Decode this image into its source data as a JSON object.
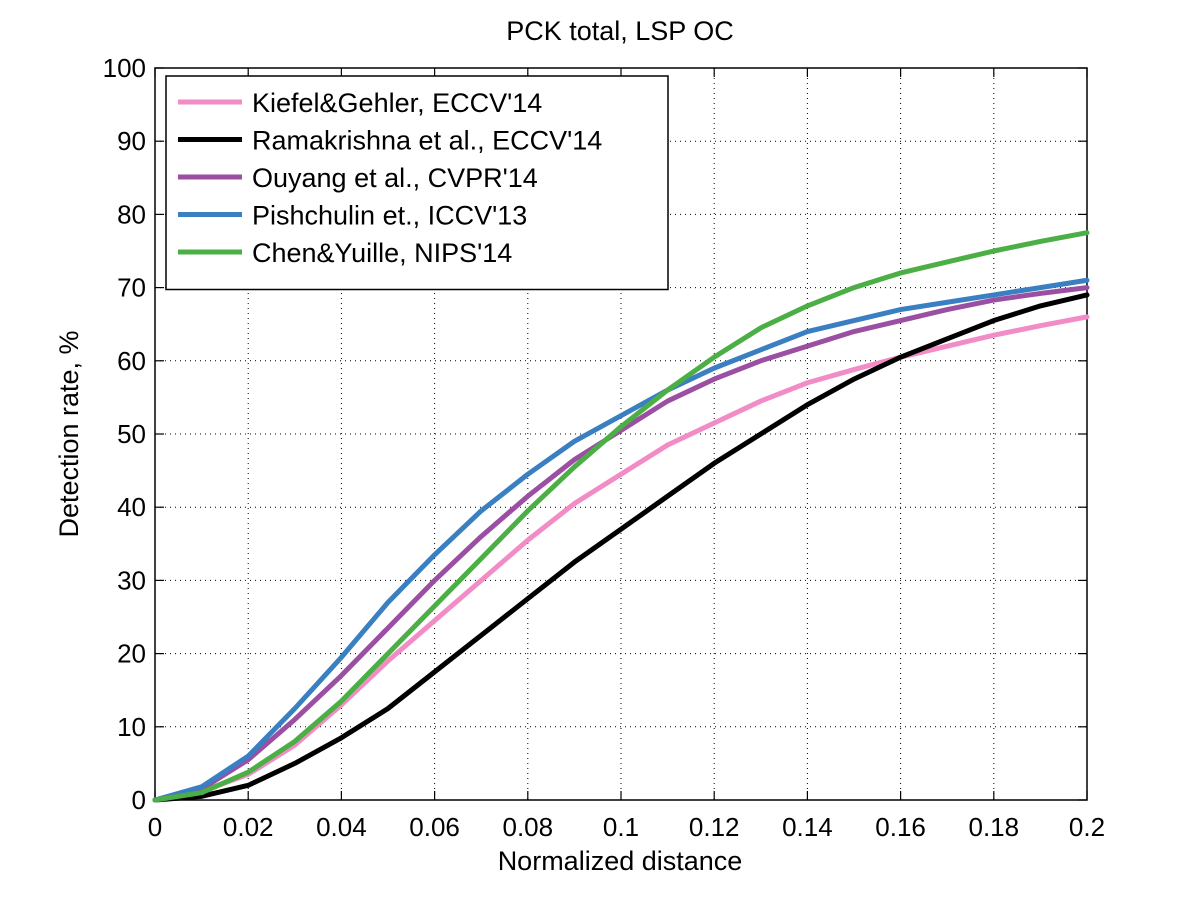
{
  "chart_data": {
    "type": "line",
    "title": "PCK total, LSP OC",
    "xlabel": "Normalized distance",
    "ylabel": "Detection rate, %",
    "xlim": [
      0,
      0.2
    ],
    "ylim": [
      0,
      100
    ],
    "xticks": [
      0,
      0.02,
      0.04,
      0.06,
      0.08,
      0.1,
      0.12,
      0.14,
      0.16,
      0.18,
      0.2
    ],
    "xtick_labels": [
      "0",
      "0.02",
      "0.04",
      "0.06",
      "0.08",
      "0.1",
      "0.12",
      "0.14",
      "0.16",
      "0.18",
      "0.2"
    ],
    "yticks": [
      0,
      10,
      20,
      30,
      40,
      50,
      60,
      70,
      80,
      90,
      100
    ],
    "ytick_labels": [
      "0",
      "10",
      "20",
      "30",
      "40",
      "50",
      "60",
      "70",
      "80",
      "90",
      "100"
    ],
    "grid": true,
    "legend_position": "top-left",
    "x": [
      0,
      0.01,
      0.02,
      0.03,
      0.04,
      0.05,
      0.06,
      0.07,
      0.08,
      0.09,
      0.1,
      0.11,
      0.12,
      0.13,
      0.14,
      0.15,
      0.16,
      0.17,
      0.18,
      0.19,
      0.2
    ],
    "series": [
      {
        "name": "Kiefel&Gehler, ECCV'14",
        "color": "#f28cc6",
        "values": [
          0,
          1.2,
          3.5,
          7.5,
          13,
          19,
          24.5,
          30,
          35.5,
          40.5,
          44.5,
          48.5,
          51.5,
          54.5,
          57,
          58.8,
          60.5,
          62,
          63.5,
          64.8,
          66
        ]
      },
      {
        "name": "Ramakrishna et al., ECCV'14",
        "color": "#000000",
        "values": [
          0,
          0.5,
          2,
          5,
          8.5,
          12.5,
          17.5,
          22.5,
          27.5,
          32.5,
          37,
          41.5,
          46,
          50,
          54,
          57.5,
          60.5,
          63,
          65.5,
          67.5,
          69
        ]
      },
      {
        "name": "Ouyang et al., CVPR'14",
        "color": "#9b4fa3",
        "values": [
          0,
          1.5,
          5.5,
          11,
          17,
          23.5,
          30,
          36,
          41.5,
          46.5,
          50.5,
          54.5,
          57.5,
          60,
          62,
          64,
          65.5,
          67,
          68.3,
          69.2,
          70
        ]
      },
      {
        "name": "Pishchulin et., ICCV'13",
        "color": "#3a7fc1",
        "values": [
          0,
          1.8,
          6,
          12.5,
          19.5,
          27,
          33.5,
          39.5,
          44.5,
          49,
          52.5,
          56,
          59,
          61.5,
          64,
          65.5,
          67,
          68,
          69,
          70,
          71
        ]
      },
      {
        "name": "Chen&Yuille, NIPS'14",
        "color": "#4caf45",
        "values": [
          0,
          1,
          3.8,
          8,
          13.5,
          20,
          26.5,
          33,
          39.5,
          45.5,
          51,
          56,
          60.5,
          64.5,
          67.5,
          70,
          72,
          73.5,
          75,
          76.3,
          77.5
        ]
      }
    ]
  }
}
